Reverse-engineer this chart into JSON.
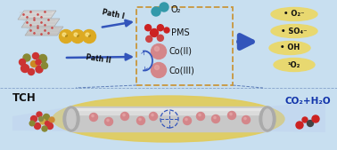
{
  "bg_color": "#c8dff0",
  "dashed_box_color": "#c8963c",
  "path_I_label": "Path I",
  "path_II_label": "Path II",
  "o2_label": "O₂",
  "pms_label": "PMS",
  "coII_label": "Co(II)",
  "coIII_label": "Co(III)",
  "radical1": "• O₂⁻",
  "radical2": "• SO₄⁻",
  "radical3": "• OH",
  "radical4": "¹O₂",
  "tch_label": "TCH",
  "product_label": "CO₂+H₂O",
  "arrow_color": "#3355bb",
  "oval_bg": "#e8d870",
  "sphere_co": "#d4868a",
  "o2_mol_teal": "#5599aa",
  "sheet_color": "#d8d8d8",
  "particle_color": "#ddaa22",
  "tube_bg": "#e0cc60",
  "tube_body": "#c8c8c8",
  "tube_sheen": "#e0e0e0",
  "divider_color": "#6688bb",
  "co2_red": "#cc2222",
  "co2_dark": "#444444"
}
